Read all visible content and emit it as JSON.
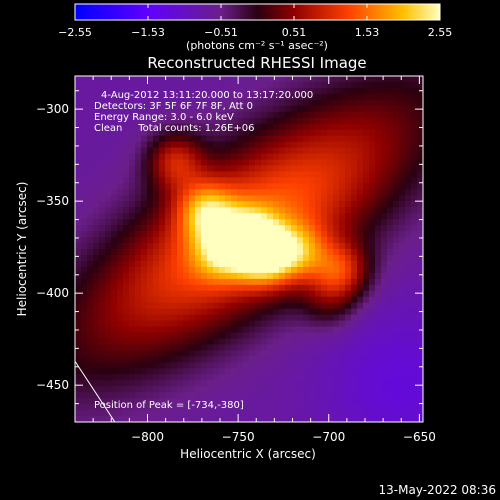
{
  "chart_data": {
    "type": "heatmap",
    "title": "Reconstructed RHESSI Image",
    "xlabel": "Heliocentric X (arcsec)",
    "ylabel": "Heliocentric Y (arcsec)",
    "xlim": [
      -840,
      -648
    ],
    "ylim": [
      -470,
      -282
    ],
    "xticks": [
      -800,
      -750,
      -700,
      -650
    ],
    "yticks": [
      -300,
      -350,
      -400,
      -450
    ],
    "colorbar": {
      "min": -2.55,
      "max": 2.55,
      "ticks": [
        "-2.55",
        "-1.53",
        "-0.51",
        "0.51",
        "1.53",
        "2.55"
      ],
      "unit_label": "(photons cm⁻² s⁻¹ asec⁻²)"
    },
    "annotations": [
      "4-Aug-2012 13:11:20.000 to 13:17:20.000",
      "Detectors: 3F 5F 6F 7F 8F, Att 0",
      "Energy Range: 3.0 - 6.0 keV",
      "Clean     Total counts: 1.26E+06"
    ],
    "peak_label": "Position of Peak = [-734,-380]",
    "sources": [
      {
        "x": -785,
        "y": -328,
        "amp": 1.3
      },
      {
        "x": -768,
        "y": -355,
        "amp": 1.5
      },
      {
        "x": -745,
        "y": -370,
        "amp": 1.6
      },
      {
        "x": -734,
        "y": -380,
        "amp": 1.9
      },
      {
        "x": -715,
        "y": -378,
        "amp": 1.2
      },
      {
        "x": -693,
        "y": -388,
        "amp": 1.4
      },
      {
        "x": -760,
        "y": -378,
        "amp": 1.0
      },
      {
        "x": -700,
        "y": -405,
        "amp": 0.6
      }
    ],
    "background_level": -0.7,
    "limb_line": [
      [
        -840,
        -437
      ],
      [
        -818,
        -470
      ]
    ]
  },
  "footer": {
    "timestamp": "13-May-2022 08:36"
  }
}
